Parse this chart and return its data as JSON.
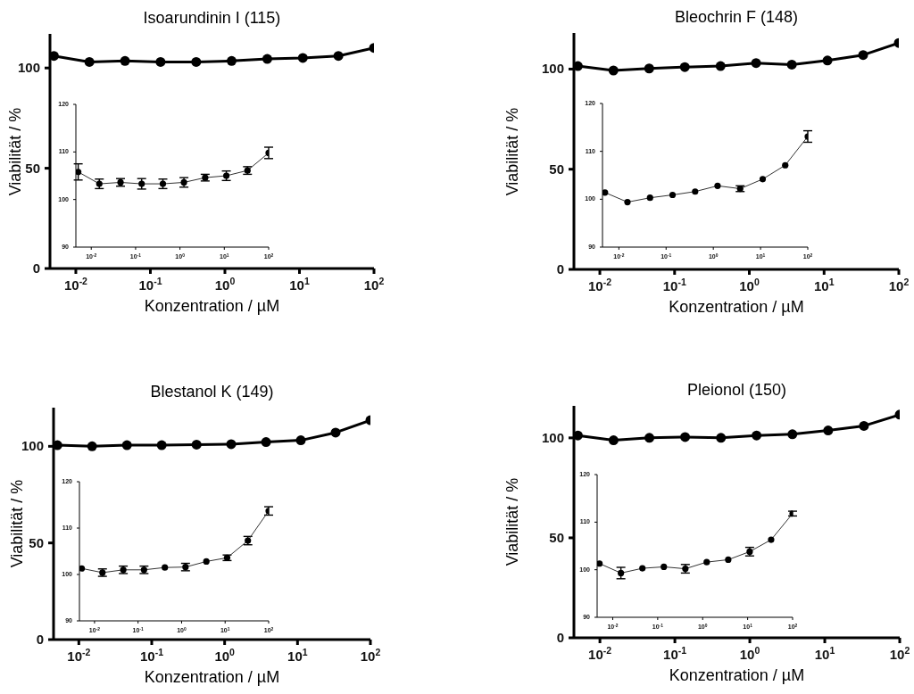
{
  "chart_data": [
    {
      "type": "line",
      "title": "Isoarundinin I (115)",
      "xlabel": "Konzentration / µM",
      "ylabel": "Viabilität / %",
      "log": "x",
      "marker": "circle",
      "x": [
        0.00508,
        0.0152,
        0.0457,
        0.137,
        0.412,
        1.23,
        3.7,
        11.1,
        33.3,
        100
      ],
      "series": [
        {
          "color": "#000000",
          "values": [
            106,
            103,
            103.5,
            103,
            103,
            103.5,
            104.5,
            105,
            106,
            110
          ]
        }
      ],
      "xlim": [
        0.0045,
        100
      ],
      "xticks": [
        {
          "value": 0.01,
          "label": "10$^{-2}$"
        },
        {
          "value": 0.1,
          "label": "10$^{-1}$"
        },
        {
          "value": 1,
          "label": "10$^{0}$"
        },
        {
          "value": 10,
          "label": "10$^{1}$"
        },
        {
          "value": 100,
          "label": "10$^{2}$"
        }
      ],
      "ylim": [
        0,
        117
      ],
      "yticks": [
        0,
        50,
        100
      ]
    },
    {
      "type": "line",
      "log": "x",
      "marker": "circle",
      "x": [
        0.00508,
        0.0152,
        0.0457,
        0.137,
        0.412,
        1.23,
        3.7,
        11.1,
        33.3,
        100
      ],
      "series": [
        {
          "color": "#333333",
          "values": [
            105.8,
            103.3,
            103.6,
            103.3,
            103.3,
            103.6,
            104.6,
            105,
            106.1,
            109.8
          ],
          "errors": [
            1.7,
            1,
            0.8,
            1.1,
            1,
            1,
            0.7,
            1,
            0.8,
            1.2
          ]
        }
      ],
      "xlim": [
        0.0045,
        100
      ],
      "xticks": [
        {
          "value": 0.01,
          "label": "10$^{-2}$"
        },
        {
          "value": 0.1,
          "label": "10$^{-1}$"
        },
        {
          "value": 1,
          "label": "10$^{0}$"
        },
        {
          "value": 10,
          "label": "10$^{1}$"
        },
        {
          "value": 100,
          "label": "10$^{2}$"
        }
      ],
      "ylim": [
        90,
        120
      ],
      "yticks": [
        90,
        100,
        110,
        120
      ]
    },
    {
      "type": "line",
      "title": "Bleochrin F (148)",
      "xlabel": "Konzentration / µM",
      "ylabel": "Viabilität / %",
      "log": "x",
      "marker": "circle",
      "x": [
        0.00508,
        0.0152,
        0.0457,
        0.137,
        0.412,
        1.23,
        3.7,
        11.1,
        33.3,
        100
      ],
      "series": [
        {
          "color": "#000000",
          "values": [
            101.5,
            99.3,
            100.3,
            101,
            101.5,
            103,
            102.2,
            104.3,
            107,
            113
          ]
        }
      ],
      "xlim": [
        0.0045,
        100
      ],
      "xticks": [
        {
          "value": 0.01,
          "label": "10$^{-2}$"
        },
        {
          "value": 0.1,
          "label": "10$^{-1}$"
        },
        {
          "value": 1,
          "label": "10$^{0}$"
        },
        {
          "value": 10,
          "label": "10$^{1}$"
        },
        {
          "value": 100,
          "label": "10$^{2}$"
        }
      ],
      "ylim": [
        0,
        118
      ],
      "yticks": [
        0,
        50,
        100
      ]
    },
    {
      "type": "line",
      "log": "x",
      "marker": "circle",
      "x": [
        0.00508,
        0.0152,
        0.0457,
        0.137,
        0.412,
        1.23,
        3.7,
        11.1,
        33.3,
        100
      ],
      "series": [
        {
          "color": "#333333",
          "values": [
            101.4,
            99.4,
            100.3,
            100.9,
            101.6,
            102.8,
            102.2,
            104.2,
            107.1,
            113.1
          ],
          "errors": [
            null,
            null,
            null,
            null,
            null,
            null,
            0.6,
            null,
            null,
            1.2
          ]
        }
      ],
      "xlim": [
        0.0045,
        100
      ],
      "xticks": [
        {
          "value": 0.01,
          "label": "10$^{-2}$"
        },
        {
          "value": 0.1,
          "label": "10$^{-1}$"
        },
        {
          "value": 1,
          "label": "10$^{0}$"
        },
        {
          "value": 10,
          "label": "10$^{1}$"
        },
        {
          "value": 100,
          "label": "10$^{2}$"
        }
      ],
      "ylim": [
        90,
        120
      ],
      "yticks": [
        90,
        100,
        110,
        120
      ]
    },
    {
      "type": "line",
      "title": "Blestanol K (149)",
      "xlabel": "Konzentration / µM",
      "ylabel": "Viabilität / %",
      "log": "x",
      "marker": "circle",
      "x": [
        0.00508,
        0.0152,
        0.0457,
        0.137,
        0.412,
        1.23,
        3.7,
        11.1,
        33.3,
        100
      ],
      "series": [
        {
          "color": "#000000",
          "values": [
            100.6,
            100,
            100.6,
            100.6,
            100.9,
            101.1,
            102.2,
            103.1,
            107.1,
            113.5
          ]
        }
      ],
      "xlim": [
        0.0045,
        100
      ],
      "xticks": [
        {
          "value": 0.01,
          "label": "10$^{-2}$"
        },
        {
          "value": 0.1,
          "label": "10$^{-1}$"
        },
        {
          "value": 1,
          "label": "10$^{0}$"
        },
        {
          "value": 10,
          "label": "10$^{1}$"
        },
        {
          "value": 100,
          "label": "10$^{2}$"
        }
      ],
      "ylim": [
        0,
        120
      ],
      "yticks": [
        0,
        50,
        100
      ]
    },
    {
      "type": "line",
      "log": "x",
      "marker": "circle",
      "x": [
        0.00508,
        0.0152,
        0.0457,
        0.137,
        0.412,
        1.23,
        3.7,
        11.1,
        33.3,
        100
      ],
      "series": [
        {
          "color": "#333333",
          "values": [
            101.3,
            100.4,
            101,
            101,
            101.5,
            101.6,
            102.8,
            103.6,
            107.3,
            113.7
          ],
          "errors": [
            null,
            0.8,
            0.8,
            0.8,
            null,
            0.8,
            null,
            0.6,
            0.9,
            0.9
          ]
        }
      ],
      "xlim": [
        0.0045,
        100
      ],
      "xticks": [
        {
          "value": 0.01,
          "label": "10$^{-2}$"
        },
        {
          "value": 0.1,
          "label": "10$^{-1}$"
        },
        {
          "value": 1,
          "label": "10$^{0}$"
        },
        {
          "value": 10,
          "label": "10$^{1}$"
        },
        {
          "value": 100,
          "label": "10$^{2}$"
        }
      ],
      "ylim": [
        90,
        120
      ],
      "yticks": [
        90,
        100,
        110,
        120
      ]
    },
    {
      "type": "line",
      "title": "Pleionol (150)",
      "xlabel": "Konzentration / µM",
      "ylabel": "Viabilität / %",
      "log": "x",
      "marker": "circle",
      "x": [
        0.00508,
        0.0152,
        0.0457,
        0.137,
        0.412,
        1.23,
        3.7,
        11.1,
        33.3,
        100
      ],
      "series": [
        {
          "color": "#000000",
          "values": [
            101.2,
            98.8,
            100,
            100.4,
            100,
            101.2,
            101.8,
            103.7,
            106,
            111.6
          ]
        }
      ],
      "xlim": [
        0.0045,
        100
      ],
      "xticks": [
        {
          "value": 0.01,
          "label": "10$^{-2}$"
        },
        {
          "value": 0.1,
          "label": "10$^{-1}$"
        },
        {
          "value": 1,
          "label": "10$^{0}$"
        },
        {
          "value": 10,
          "label": "10$^{1}$"
        },
        {
          "value": 100,
          "label": "10$^{2}$"
        }
      ],
      "ylim": [
        0,
        116
      ],
      "yticks": [
        0,
        50,
        100
      ]
    },
    {
      "type": "line",
      "log": "x",
      "marker": "circle",
      "x": [
        0.00508,
        0.0152,
        0.0457,
        0.137,
        0.412,
        1.23,
        3.7,
        11.1,
        33.3,
        100
      ],
      "series": [
        {
          "color": "#333333",
          "values": [
            101.3,
            99.3,
            100.3,
            100.6,
            100.2,
            101.6,
            102.1,
            103.8,
            106.3,
            111.8
          ],
          "errors": [
            null,
            1.2,
            null,
            null,
            0.9,
            null,
            null,
            0.9,
            null,
            0.5
          ]
        }
      ],
      "xlim": [
        0.0045,
        100
      ],
      "xticks": [
        {
          "value": 0.01,
          "label": "10$^{-2}$"
        },
        {
          "value": 0.1,
          "label": "10$^{-1}$"
        },
        {
          "value": 1,
          "label": "10$^{0}$"
        },
        {
          "value": 10,
          "label": "10$^{1}$"
        },
        {
          "value": 100,
          "label": "10$^{2}$"
        }
      ],
      "ylim": [
        90,
        120
      ],
      "yticks": [
        90,
        100,
        110,
        120
      ]
    }
  ]
}
